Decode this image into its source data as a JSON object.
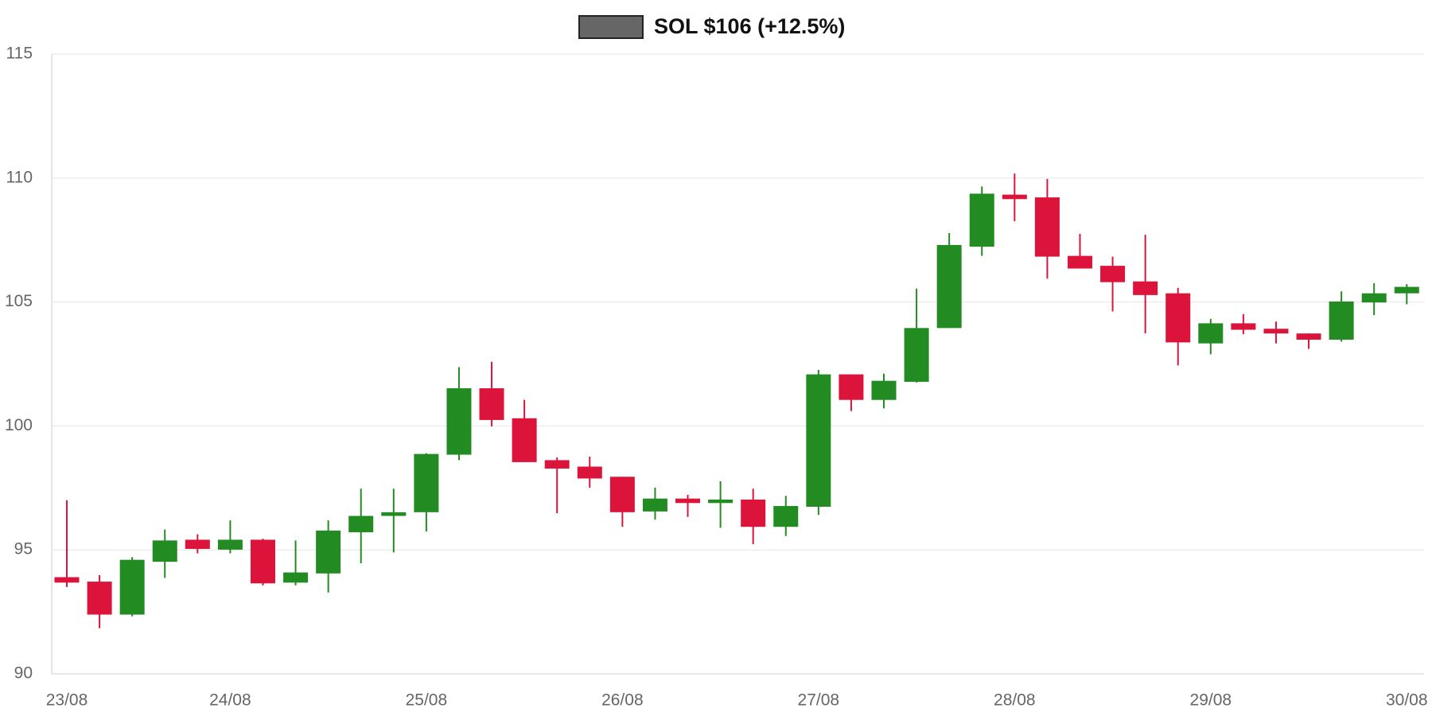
{
  "chart_data": {
    "type": "candlestick",
    "categories": [
      "23/08",
      null,
      null,
      null,
      null,
      "24/08",
      null,
      null,
      null,
      null,
      null,
      "25/08",
      null,
      null,
      null,
      null,
      null,
      "26/08",
      null,
      null,
      null,
      null,
      null,
      "27/08",
      null,
      null,
      null,
      null,
      null,
      "28/08",
      null,
      null,
      null,
      null,
      null,
      "29/08",
      null,
      null,
      null,
      null,
      null,
      "30/08"
    ],
    "series": [
      {
        "name": "SOL $106 (+12.5%)",
        "color": "#666666",
        "open": [
          93.9,
          93.72,
          92.39,
          94.52,
          95.41,
          95.01,
          95.41,
          93.68,
          94.05,
          95.71,
          96.37,
          96.52,
          98.84,
          101.52,
          100.31,
          98.62,
          98.36,
          97.95,
          96.55,
          97.07,
          96.89,
          97.03,
          95.93,
          96.74,
          102.08,
          101.05,
          101.78,
          103.95,
          107.23,
          109.33,
          109.22,
          106.86,
          106.46,
          105.83,
          105.35,
          103.33,
          104.14,
          103.92,
          103.73,
          103.48,
          104.98,
          105.35
        ],
        "high": [
          97.0,
          93.98,
          94.71,
          95.82,
          95.63,
          96.19,
          95.45,
          95.38,
          96.19,
          97.47,
          97.47,
          98.9,
          102.37,
          102.59,
          101.05,
          98.73,
          98.76,
          97.95,
          97.51,
          97.22,
          97.77,
          97.47,
          97.18,
          102.26,
          102.08,
          102.11,
          105.54,
          107.78,
          109.66,
          110.18,
          109.96,
          107.75,
          106.83,
          107.71,
          105.57,
          104.32,
          104.51,
          104.21,
          103.73,
          105.43,
          105.76,
          105.72
        ],
        "low": [
          93.5,
          91.84,
          92.32,
          93.87,
          94.86,
          94.86,
          93.57,
          93.57,
          93.28,
          94.46,
          94.9,
          95.74,
          98.62,
          99.98,
          98.54,
          96.48,
          97.51,
          95.93,
          96.22,
          96.33,
          95.89,
          95.23,
          95.56,
          96.41,
          100.6,
          100.71,
          101.75,
          103.95,
          106.86,
          108.26,
          105.94,
          106.35,
          104.62,
          103.73,
          102.44,
          102.89,
          103.7,
          103.33,
          103.11,
          103.4,
          104.47,
          104.91
        ],
        "close": [
          93.68,
          92.39,
          94.6,
          95.38,
          95.04,
          95.41,
          93.65,
          94.09,
          95.78,
          96.37,
          96.52,
          98.87,
          101.52,
          100.24,
          98.54,
          98.28,
          97.88,
          96.52,
          97.07,
          96.89,
          97.03,
          95.93,
          96.77,
          102.08,
          101.05,
          101.82,
          103.95,
          107.3,
          109.37,
          109.15,
          106.83,
          106.35,
          105.8,
          105.28,
          103.37,
          104.14,
          103.88,
          103.73,
          103.48,
          105.02,
          105.35,
          105.61
        ]
      }
    ],
    "up_color": "#228b22",
    "down_color": "#dc143c",
    "ylim": [
      90,
      115
    ],
    "yticks": [
      90,
      95,
      100,
      105,
      110,
      115
    ],
    "grid": true,
    "legend": "top"
  }
}
